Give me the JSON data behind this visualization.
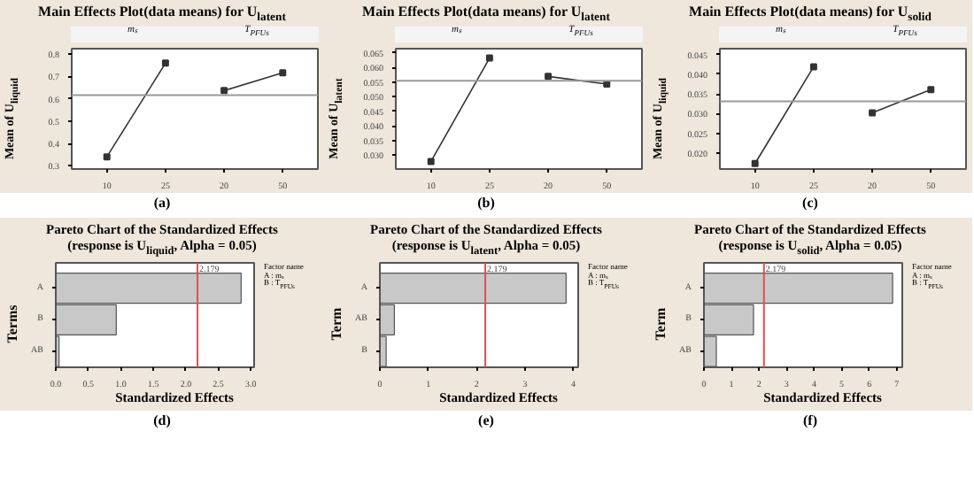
{
  "chart_data": [
    {
      "type": "line",
      "title": "Main Effects Plot(data means) for U$_{latent}$",
      "ylabel": "Mean of U$_{liquid}$",
      "categories": [
        "10",
        "25",
        "20",
        "50"
      ],
      "series": [
        {
          "color": "#333333",
          "values": [
            0.34,
            0.76,
            null,
            null
          ]
        },
        {
          "color": "#333333",
          "values": [
            null,
            null,
            0.637,
            0.717
          ]
        }
      ],
      "ylim": [
        0.285,
        0.825
      ],
      "yticks": [
        0.3,
        0.4,
        0.5,
        0.6,
        0.7,
        0.8
      ],
      "ref_lines": [
        {
          "axis": "y",
          "value": 0.617,
          "color": "#999999"
        }
      ],
      "marker": "square",
      "grid": false,
      "annotations": [
        "mₛ",
        "T$_{PFUs}$",
        "(a)"
      ]
    },
    {
      "type": "line",
      "title": "Main Effects Plot(data means) for U$_{latent}$",
      "ylabel": "Mean of U$_{latent}$",
      "categories": [
        "10",
        "25",
        "20",
        "50"
      ],
      "series": [
        {
          "color": "#333333",
          "values": [
            0.0279,
            0.0633,
            null,
            null
          ]
        },
        {
          "color": "#333333",
          "values": [
            null,
            null,
            0.057,
            0.0544
          ]
        }
      ],
      "ylim": [
        0.0253,
        0.0665
      ],
      "yticks": [
        {
          "value": 0.03,
          "label": "0.030"
        },
        {
          "value": 0.035,
          "label": "0.035"
        },
        {
          "value": 0.04,
          "label": "0.040"
        },
        {
          "value": 0.045,
          "label": "0.045"
        },
        {
          "value": 0.05,
          "label": "0.050"
        },
        {
          "value": 0.055,
          "label": "0.055"
        },
        {
          "value": 0.06,
          "label": "0.060"
        },
        {
          "value": 0.065,
          "label": "0.065"
        }
      ],
      "ref_lines": [
        {
          "axis": "y",
          "value": 0.0555,
          "color": "#999999"
        }
      ],
      "marker": "square",
      "grid": false,
      "annotations": [
        "mₛ",
        "T$_{PFUs}$",
        "(b)"
      ]
    },
    {
      "type": "line",
      "title": "Main Effects Plot(data means) for U$_{solid}$",
      "ylabel": "Mean of U$_{liquid}$",
      "categories": [
        "10",
        "25",
        "20",
        "50"
      ],
      "series": [
        {
          "color": "#333333",
          "values": [
            0.0173,
            0.0419,
            null,
            null
          ]
        },
        {
          "color": "#333333",
          "values": [
            null,
            null,
            0.0302,
            0.0361
          ]
        }
      ],
      "ylim": [
        0.0159,
        0.0465
      ],
      "yticks": [
        {
          "value": 0.02,
          "label": "0.020"
        },
        {
          "value": 0.025,
          "label": "0.025"
        },
        {
          "value": 0.03,
          "label": "0.030"
        },
        {
          "value": 0.035,
          "label": "0.035"
        },
        {
          "value": 0.04,
          "label": "0.040"
        },
        {
          "value": 0.045,
          "label": "0.045"
        }
      ],
      "ref_lines": [
        {
          "axis": "y",
          "value": 0.0331,
          "color": "#999999"
        }
      ],
      "marker": "square",
      "grid": false,
      "annotations": [
        "mₛ",
        "T$_{PFUs}$",
        "(c)"
      ]
    },
    {
      "type": "bar",
      "orientation": "horizontal",
      "title": "Pareto Chart of the Standardized Effects",
      "subtitle": "(response is U$_{liquid}$, Alpha = 0.05)",
      "xlabel": "Standardized Effects",
      "ylabel": "Terms",
      "categories": [
        "A",
        "B",
        "AB"
      ],
      "values": [
        2.85,
        0.93,
        0.05
      ],
      "color": "#c8c8c8",
      "xlim": [
        0,
        3.05
      ],
      "xticks": [
        {
          "value": 0,
          "label": "0.0"
        },
        {
          "value": 0.5,
          "label": "0.5"
        },
        {
          "value": 1,
          "label": "1.0"
        },
        {
          "value": 1.5,
          "label": "1.5"
        },
        {
          "value": 2,
          "label": "2.0"
        },
        {
          "value": 2.5,
          "label": "2.5"
        },
        {
          "value": 3,
          "label": "3.0"
        }
      ],
      "ref_lines": [
        {
          "axis": "x",
          "value": 2.179,
          "label": "2.179",
          "color": "#e05050"
        }
      ],
      "grid": false,
      "annotations": [
        "Factor name",
        "A : mₛ",
        "B : T$_{PFUs}$",
        "(d)"
      ]
    },
    {
      "type": "bar",
      "orientation": "horizontal",
      "title": "Pareto Chart of the Standardized Effects",
      "subtitle": "(response is U$_{latent}$, Alpha = 0.05)",
      "xlabel": "Standardized Effects",
      "ylabel": "Term",
      "categories": [
        "A",
        "AB",
        "B"
      ],
      "values": [
        3.85,
        0.3,
        0.13
      ],
      "color": "#c8c8c8",
      "xlim": [
        0,
        4.1
      ],
      "xticks": [
        0,
        1,
        2,
        3,
        4
      ],
      "ref_lines": [
        {
          "axis": "x",
          "value": 2.179,
          "label": "2.179",
          "color": "#e05050"
        }
      ],
      "grid": false,
      "annotations": [
        "Factor name",
        "A : mₛ",
        "B : T$_{PFUs}$",
        "(e)"
      ]
    },
    {
      "type": "bar",
      "orientation": "horizontal",
      "title": "Pareto Chart of the Standardized Effects",
      "subtitle": "(response is U$_{solid}$, Alpha = 0.05)",
      "xlabel": "Standardized Effects",
      "ylabel": "Term",
      "categories": [
        "A",
        "B",
        "AB"
      ],
      "values": [
        6.85,
        1.8,
        0.45
      ],
      "color": "#c8c8c8",
      "xlim": [
        0,
        7.2
      ],
      "xticks": [
        0,
        1,
        2,
        3,
        4,
        5,
        6,
        7
      ],
      "ref_lines": [
        {
          "axis": "x",
          "value": 2.179,
          "label": "2.179",
          "color": "#e05050"
        }
      ],
      "grid": false,
      "annotations": [
        "Factor name",
        "A : mₛ",
        "B : T$_{PFUs}$",
        "(f)"
      ]
    }
  ]
}
